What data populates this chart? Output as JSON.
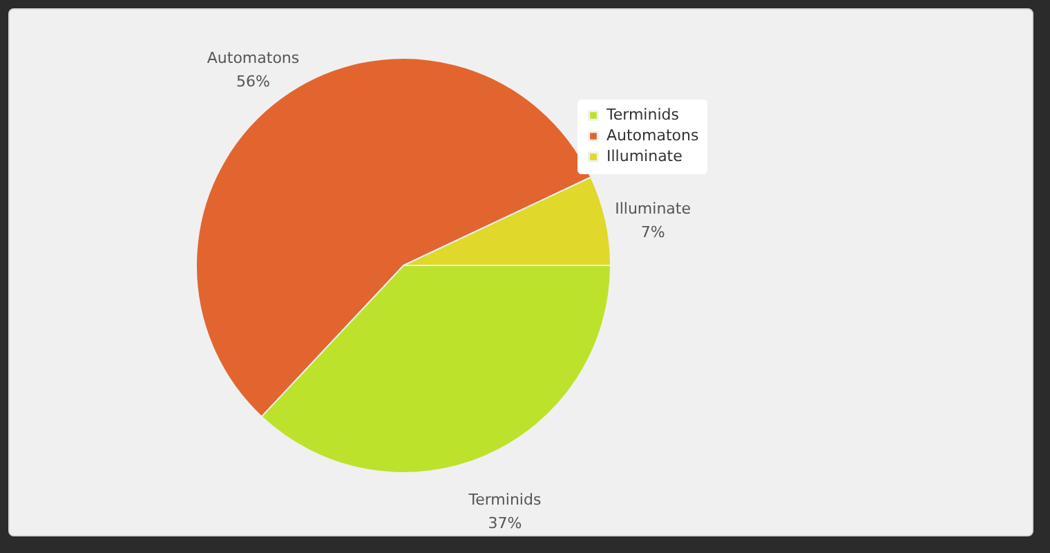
{
  "chart_data": {
    "type": "pie",
    "categories": [
      "Terminids",
      "Automatons",
      "Illuminate"
    ],
    "values": [
      37,
      56,
      7
    ],
    "colors": [
      "#bde22b",
      "#e2652f",
      "#e0d82a"
    ],
    "value_labels": [
      "37%",
      "56%",
      "7%"
    ],
    "legend": "top right"
  }
}
